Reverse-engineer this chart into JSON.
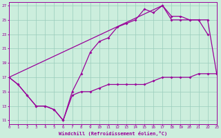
{
  "xlabel": "Windchill (Refroidissement éolien,°C)",
  "background_color": "#cceedd",
  "line_color": "#990099",
  "grid_color": "#99ccbb",
  "hours": [
    0,
    1,
    2,
    3,
    4,
    5,
    6,
    7,
    8,
    9,
    10,
    11,
    12,
    13,
    14,
    15,
    16,
    17,
    18,
    19,
    20,
    21,
    22,
    23
  ],
  "series1": [
    17,
    16,
    14.5,
    13,
    13,
    12.5,
    11,
    15,
    17.5,
    20.5,
    22,
    22.5,
    24,
    24.5,
    25,
    26.5,
    26,
    27,
    25,
    25,
    25,
    25,
    23,
    null
  ],
  "series2": [
    17,
    null,
    null,
    null,
    null,
    null,
    null,
    null,
    null,
    null,
    null,
    null,
    null,
    null,
    null,
    null,
    null,
    27,
    25.5,
    25.5,
    25,
    25,
    25,
    17.5
  ],
  "series3": [
    17,
    16,
    14.5,
    13,
    13,
    12.5,
    11,
    14.5,
    15,
    15,
    15.5,
    16,
    16,
    16,
    16,
    16,
    16.5,
    17,
    17,
    17,
    17,
    17.5,
    17.5,
    17.5
  ],
  "xlim": [
    0,
    23
  ],
  "ylim": [
    10.5,
    27.5
  ],
  "yticks": [
    11,
    13,
    15,
    17,
    19,
    21,
    23,
    25,
    27
  ],
  "xticks": [
    0,
    1,
    2,
    3,
    4,
    5,
    6,
    7,
    8,
    9,
    10,
    11,
    12,
    13,
    14,
    15,
    16,
    17,
    18,
    19,
    20,
    21,
    22,
    23
  ]
}
